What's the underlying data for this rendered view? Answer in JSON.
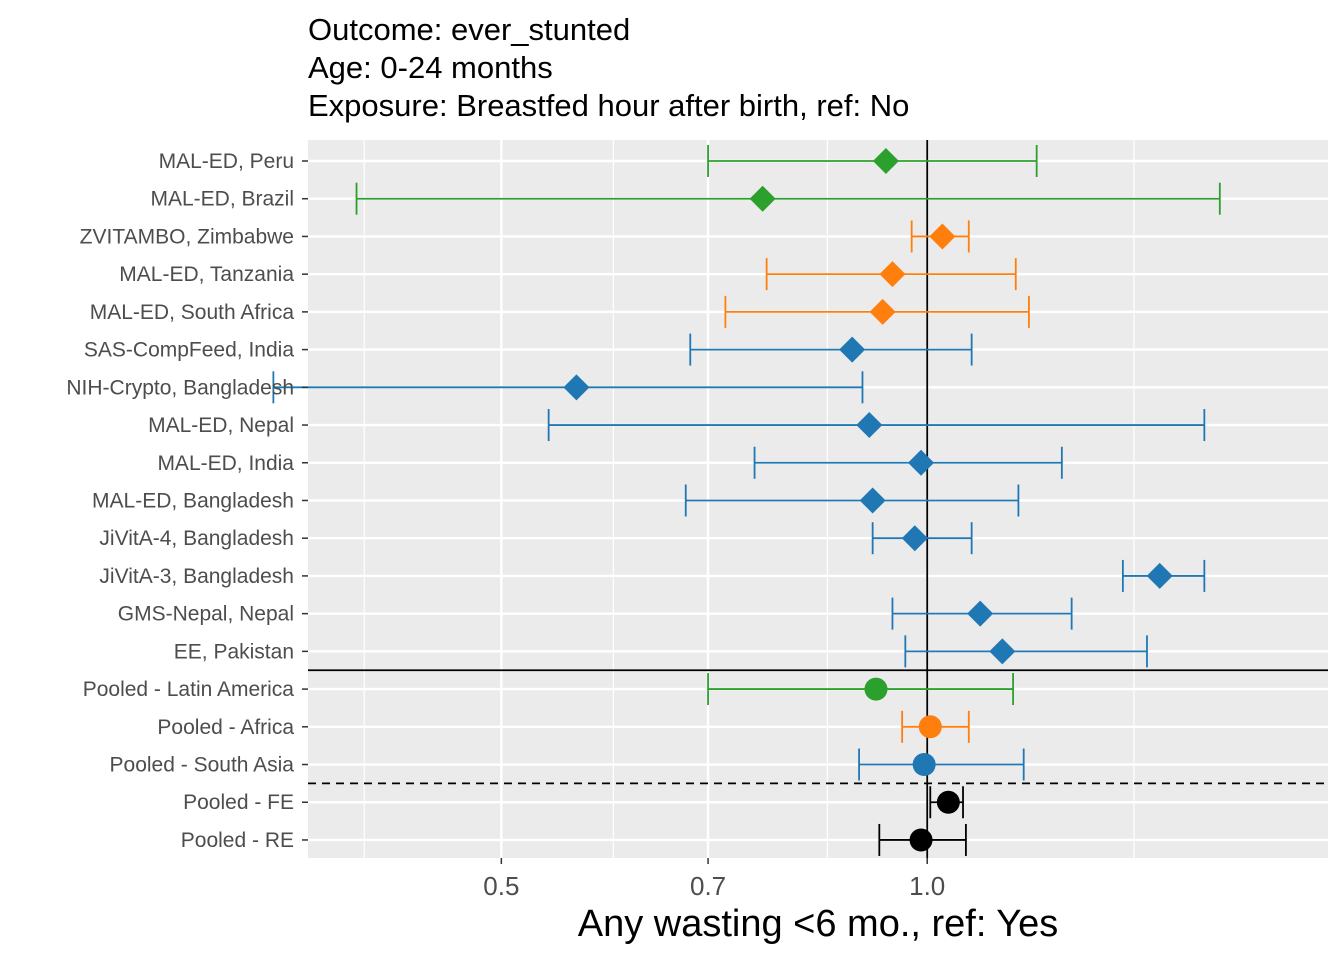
{
  "chart_data": {
    "type": "forest",
    "title_lines": [
      "Outcome: ever_stunted",
      "Age: 0-24 months",
      "Exposure: Breastfed hour after birth, ref: No"
    ],
    "xlabel": "Any wasting  <6 mo., ref: Yes",
    "ylabel": "",
    "x_scale": "log",
    "xlim": [
      0.365,
      1.92
    ],
    "x_ticks": [
      0.5,
      0.7,
      1.0
    ],
    "x_tick_labels": [
      "0.5",
      "0.7",
      "1.0"
    ],
    "x_minor_ticks": [
      0.4,
      0.6,
      0.85,
      1.4
    ],
    "reference_line": 1.0,
    "grid": true,
    "colors": {
      "latin_america": "#2ca02c",
      "africa": "#ff7f0e",
      "south_asia": "#1f77b4",
      "overall": "#000000",
      "panel_bg": "#ebebeb",
      "grid": "#ffffff"
    },
    "rows": [
      {
        "label": "MAL-ED, Peru",
        "est": 0.935,
        "lo": 0.7,
        "hi": 1.195,
        "region": "latin_america",
        "shape": "diamond"
      },
      {
        "label": "MAL-ED, Brazil",
        "est": 0.765,
        "lo": 0.395,
        "hi": 1.61,
        "region": "latin_america",
        "shape": "diamond"
      },
      {
        "label": "ZVITAMBO, Zimbabwe",
        "est": 1.025,
        "lo": 0.975,
        "hi": 1.07,
        "region": "africa",
        "shape": "diamond"
      },
      {
        "label": "MAL-ED, Tanzania",
        "est": 0.945,
        "lo": 0.77,
        "hi": 1.155,
        "region": "africa",
        "shape": "diamond"
      },
      {
        "label": "MAL-ED, South Africa",
        "est": 0.93,
        "lo": 0.72,
        "hi": 1.18,
        "region": "africa",
        "shape": "diamond"
      },
      {
        "label": "SAS-CompFeed, India",
        "est": 0.885,
        "lo": 0.68,
        "hi": 1.075,
        "region": "south_asia",
        "shape": "diamond"
      },
      {
        "label": "NIH-Crypto, Bangladesh",
        "est": 0.565,
        "lo": 0.345,
        "hi": 0.9,
        "region": "south_asia",
        "shape": "diamond"
      },
      {
        "label": "MAL-ED, Nepal",
        "est": 0.91,
        "lo": 0.54,
        "hi": 1.57,
        "region": "south_asia",
        "shape": "diamond"
      },
      {
        "label": "MAL-ED, India",
        "est": 0.99,
        "lo": 0.755,
        "hi": 1.245,
        "region": "south_asia",
        "shape": "diamond"
      },
      {
        "label": "MAL-ED, Bangladesh",
        "est": 0.915,
        "lo": 0.675,
        "hi": 1.16,
        "region": "south_asia",
        "shape": "diamond"
      },
      {
        "label": "JiVitA-4, Bangladesh",
        "est": 0.98,
        "lo": 0.915,
        "hi": 1.075,
        "region": "south_asia",
        "shape": "diamond"
      },
      {
        "label": "JiVitA-3, Bangladesh",
        "est": 1.46,
        "lo": 1.375,
        "hi": 1.57,
        "region": "south_asia",
        "shape": "diamond"
      },
      {
        "label": "GMS-Nepal, Nepal",
        "est": 1.09,
        "lo": 0.945,
        "hi": 1.265,
        "region": "south_asia",
        "shape": "diamond"
      },
      {
        "label": "EE, Pakistan",
        "est": 1.13,
        "lo": 0.965,
        "hi": 1.43,
        "region": "south_asia",
        "shape": "diamond"
      },
      {
        "label": "Pooled - Latin America",
        "est": 0.92,
        "lo": 0.7,
        "hi": 1.15,
        "region": "latin_america",
        "shape": "circle"
      },
      {
        "label": "Pooled - Africa",
        "est": 1.005,
        "lo": 0.96,
        "hi": 1.07,
        "region": "africa",
        "shape": "circle"
      },
      {
        "label": "Pooled - South Asia",
        "est": 0.995,
        "lo": 0.895,
        "hi": 1.17,
        "region": "south_asia",
        "shape": "circle"
      },
      {
        "label": "Pooled - FE",
        "est": 1.035,
        "lo": 1.005,
        "hi": 1.06,
        "region": "overall",
        "shape": "circle"
      },
      {
        "label": "Pooled - RE",
        "est": 0.99,
        "lo": 0.925,
        "hi": 1.065,
        "region": "overall",
        "shape": "circle"
      }
    ],
    "separators": [
      {
        "after_row": 13,
        "style": "solid"
      },
      {
        "after_row": 16,
        "style": "dashed"
      }
    ]
  }
}
